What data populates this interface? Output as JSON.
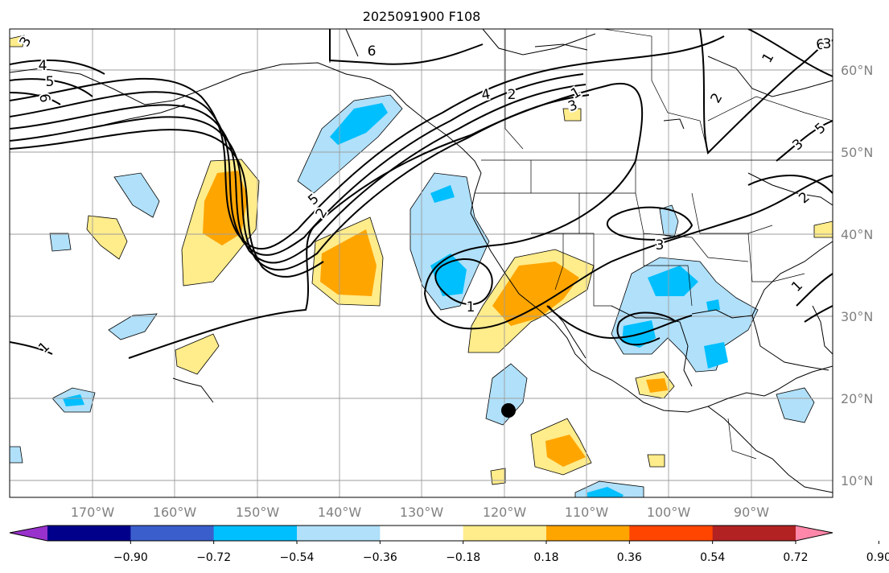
{
  "title": "2025091900 F108",
  "map": {
    "lat_labels": [
      "60°N",
      "50°N",
      "40°N",
      "30°N",
      "20°N",
      "10°N"
    ],
    "lon_labels": [
      "170°W",
      "160°W",
      "150°W",
      "140°W",
      "130°W",
      "120°W",
      "110°W",
      "100°W",
      "90°W"
    ],
    "contour_labels": [
      "3",
      "4",
      "5",
      "6",
      "6",
      "5",
      "4",
      "2",
      "1",
      "3",
      "2",
      "1",
      "2",
      "3",
      "1",
      "5",
      "6",
      "3",
      "3",
      "1",
      "2",
      "1"
    ],
    "marker": "storm-center"
  },
  "colorbar": {
    "colors": [
      "#9932cc",
      "#00008b",
      "#3a5fcd",
      "#00bfff",
      "#b0e0fa",
      "#ffffff",
      "#ffec8b",
      "#ffa500",
      "#ff4500",
      "#b22222",
      "#ff88aa"
    ],
    "tick_labels": [
      "−0.90",
      "−0.72",
      "−0.54",
      "−0.36",
      "−0.18",
      "0.18",
      "0.36",
      "0.54",
      "0.72",
      "0.90"
    ]
  }
}
